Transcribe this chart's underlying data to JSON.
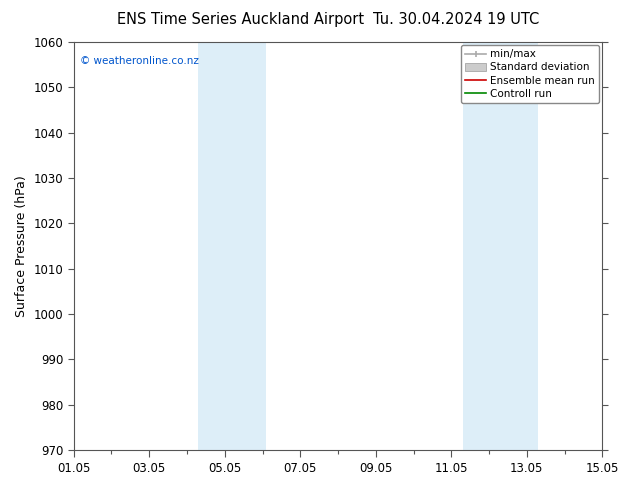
{
  "title_left": "ENS Time Series Auckland Airport",
  "title_right": "Tu. 30.04.2024 19 UTC",
  "ylabel": "Surface Pressure (hPa)",
  "ylim": [
    970,
    1060
  ],
  "yticks": [
    970,
    980,
    990,
    1000,
    1010,
    1020,
    1030,
    1040,
    1050,
    1060
  ],
  "xlim_start": 0,
  "xlim_end": 14,
  "xtick_positions": [
    0,
    2,
    4,
    6,
    8,
    10,
    12,
    14
  ],
  "xtick_labels": [
    "01.05",
    "03.05",
    "05.05",
    "07.05",
    "09.05",
    "11.05",
    "13.05",
    "15.05"
  ],
  "shaded_bands": [
    {
      "xmin": 3.3,
      "xmax": 5.1
    },
    {
      "xmin": 10.3,
      "xmax": 12.3
    }
  ],
  "band_color": "#ddeef8",
  "copyright_text": "© weatheronline.co.nz",
  "copyright_color": "#0055cc",
  "legend_labels": [
    "min/max",
    "Standard deviation",
    "Ensemble mean run",
    "Controll run"
  ],
  "legend_line_colors": [
    "#aaaaaa",
    "#cccccc",
    "#cc0000",
    "#008800"
  ],
  "background_color": "#ffffff",
  "spine_color": "#555555",
  "title_fontsize": 10.5,
  "ylabel_fontsize": 9,
  "tick_fontsize": 8.5,
  "legend_fontsize": 7.5
}
